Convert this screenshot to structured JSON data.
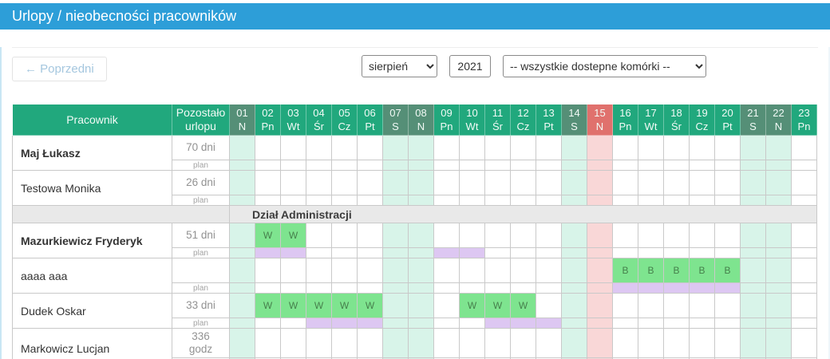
{
  "title": "Urlopy / nieobecności pracowników",
  "toolbar": {
    "previous_label": "← Poprzedni",
    "month_selected": "sierpień",
    "year_value": "2021",
    "unit_filter_selected": "-- wszystkie dostepne komórki --"
  },
  "table": {
    "employee_header": "Pracownik",
    "remaining_header_lines": [
      "Pozostało",
      "urlopu"
    ],
    "plan_label": "plan",
    "days": [
      {
        "num": "01",
        "abbr": "N",
        "type": "weekend"
      },
      {
        "num": "02",
        "abbr": "Pn"
      },
      {
        "num": "03",
        "abbr": "Wt"
      },
      {
        "num": "04",
        "abbr": "Śr"
      },
      {
        "num": "05",
        "abbr": "Cz"
      },
      {
        "num": "06",
        "abbr": "Pt"
      },
      {
        "num": "07",
        "abbr": "S",
        "type": "weekend"
      },
      {
        "num": "08",
        "abbr": "N",
        "type": "weekend"
      },
      {
        "num": "09",
        "abbr": "Pn"
      },
      {
        "num": "10",
        "abbr": "Wt"
      },
      {
        "num": "11",
        "abbr": "Śr"
      },
      {
        "num": "12",
        "abbr": "Cz"
      },
      {
        "num": "13",
        "abbr": "Pt"
      },
      {
        "num": "14",
        "abbr": "S",
        "type": "weekend"
      },
      {
        "num": "15",
        "abbr": "N",
        "type": "holiday"
      },
      {
        "num": "16",
        "abbr": "Pn"
      },
      {
        "num": "17",
        "abbr": "Wt"
      },
      {
        "num": "18",
        "abbr": "Śr"
      },
      {
        "num": "19",
        "abbr": "Cz"
      },
      {
        "num": "20",
        "abbr": "Pt"
      },
      {
        "num": "21",
        "abbr": "S",
        "type": "weekend"
      },
      {
        "num": "22",
        "abbr": "N",
        "type": "weekend"
      },
      {
        "num": "23",
        "abbr": "Pn"
      }
    ],
    "rows": [
      {
        "type": "employee",
        "name": "Maj Łukasz",
        "bold": true,
        "remaining": [
          "70 dni"
        ],
        "marks": {},
        "plan": []
      },
      {
        "type": "employee",
        "name": "Testowa Monika",
        "bold": false,
        "remaining": [
          "26 dni"
        ],
        "marks": {},
        "plan": []
      },
      {
        "type": "section",
        "label": "Dział Administracji"
      },
      {
        "type": "employee",
        "name": "Mazurkiewicz Fryderyk",
        "bold": true,
        "remaining": [
          "51 dni"
        ],
        "marks": {
          "02": "W",
          "03": "W"
        },
        "plan": [
          "02",
          "03",
          "09",
          "10"
        ]
      },
      {
        "type": "employee",
        "name": "aaaa aaa",
        "bold": false,
        "remaining": [],
        "marks": {
          "16": "B",
          "17": "B",
          "18": "B",
          "19": "B",
          "20": "B"
        },
        "plan": [
          "16",
          "17",
          "18",
          "19",
          "20"
        ]
      },
      {
        "type": "employee",
        "name": "Dudek Oskar",
        "bold": false,
        "remaining": [
          "33 dni"
        ],
        "marks": {
          "02": "W",
          "03": "W",
          "04": "W",
          "05": "W",
          "06": "W",
          "10": "W",
          "11": "W",
          "12": "W"
        },
        "plan": [
          "04",
          "05",
          "06",
          "11",
          "12",
          "13"
        ]
      },
      {
        "type": "employee",
        "name": "Markowicz Lucjan",
        "bold": false,
        "remaining": [
          "336",
          "godz"
        ],
        "marks": {},
        "plan": []
      }
    ]
  },
  "colors": {
    "titlebar_blue": "#2d9ed8",
    "header_green": "#21a87d",
    "weekend_header_green": "#558f77",
    "holiday_header_red": "#e0716d",
    "weekend_cell_mint": "#d8f4e9",
    "holiday_cell_pink": "#f9d7d7",
    "absence_cell_green": "#7ee48f",
    "plan_cell_purple": "#ddc7f2",
    "section_row_gray": "#e9e9e9"
  }
}
